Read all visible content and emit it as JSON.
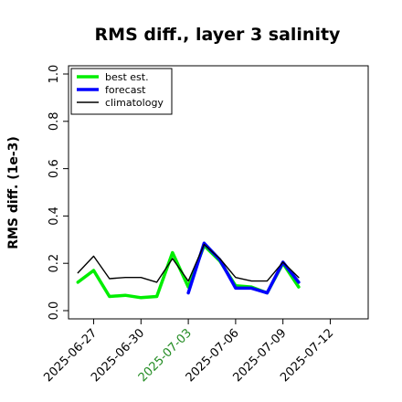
{
  "chart_data": {
    "type": "line",
    "title": "RMS diff., layer 3 salinity",
    "ylabel": "RMS diff. (1e-3)",
    "xlabel": "",
    "ylim": [
      0.0,
      1.0
    ],
    "xlim": [
      "2025-06-25",
      "2025-07-14"
    ],
    "yticks": [
      "0.0",
      "0.2",
      "0.4",
      "0.6",
      "0.8",
      "1.0"
    ],
    "xticks": [
      {
        "date": "2025-06-27",
        "label": "2025-06-27",
        "color": "#000000"
      },
      {
        "date": "2025-06-30",
        "label": "2025-06-30",
        "color": "#000000"
      },
      {
        "date": "2025-07-03",
        "label": "2025-07-03",
        "color": "#228b22"
      },
      {
        "date": "2025-07-06",
        "label": "2025-07-06",
        "color": "#000000"
      },
      {
        "date": "2025-07-09",
        "label": "2025-07-09",
        "color": "#000000"
      },
      {
        "date": "2025-07-12",
        "label": "2025-07-12",
        "color": "#000000"
      }
    ],
    "legend_position": "top-left",
    "series": [
      {
        "name": "best est.",
        "color": "#00ee00",
        "style": "thick",
        "points": [
          [
            "2025-06-26",
            0.12
          ],
          [
            "2025-06-27",
            0.17
          ],
          [
            "2025-06-28",
            0.06
          ],
          [
            "2025-06-29",
            0.065
          ],
          [
            "2025-06-30",
            0.055
          ],
          [
            "2025-07-01",
            0.06
          ],
          [
            "2025-07-02",
            0.245
          ],
          [
            "2025-07-03",
            0.1
          ],
          [
            "2025-07-04",
            0.275
          ],
          [
            "2025-07-05",
            0.21
          ],
          [
            "2025-07-06",
            0.105
          ],
          [
            "2025-07-07",
            0.1
          ],
          [
            "2025-07-08",
            0.075
          ],
          [
            "2025-07-09",
            0.2
          ],
          [
            "2025-07-10",
            0.1
          ]
        ]
      },
      {
        "name": "forecast",
        "color": "#0000ff",
        "style": "thick",
        "points": [
          [
            "2025-07-03",
            0.075
          ],
          [
            "2025-07-04",
            0.285
          ],
          [
            "2025-07-05",
            0.215
          ],
          [
            "2025-07-06",
            0.095
          ],
          [
            "2025-07-07",
            0.095
          ],
          [
            "2025-07-08",
            0.075
          ],
          [
            "2025-07-09",
            0.205
          ],
          [
            "2025-07-10",
            0.12
          ]
        ]
      },
      {
        "name": "climatology",
        "color": "#000000",
        "style": "thin",
        "points": [
          [
            "2025-06-26",
            0.16
          ],
          [
            "2025-06-27",
            0.23
          ],
          [
            "2025-06-28",
            0.135
          ],
          [
            "2025-06-29",
            0.14
          ],
          [
            "2025-06-30",
            0.14
          ],
          [
            "2025-07-01",
            0.12
          ],
          [
            "2025-07-02",
            0.22
          ],
          [
            "2025-07-03",
            0.125
          ],
          [
            "2025-07-04",
            0.28
          ],
          [
            "2025-07-05",
            0.22
          ],
          [
            "2025-07-06",
            0.14
          ],
          [
            "2025-07-07",
            0.125
          ],
          [
            "2025-07-08",
            0.125
          ],
          [
            "2025-07-09",
            0.205
          ],
          [
            "2025-07-10",
            0.14
          ]
        ]
      }
    ]
  }
}
